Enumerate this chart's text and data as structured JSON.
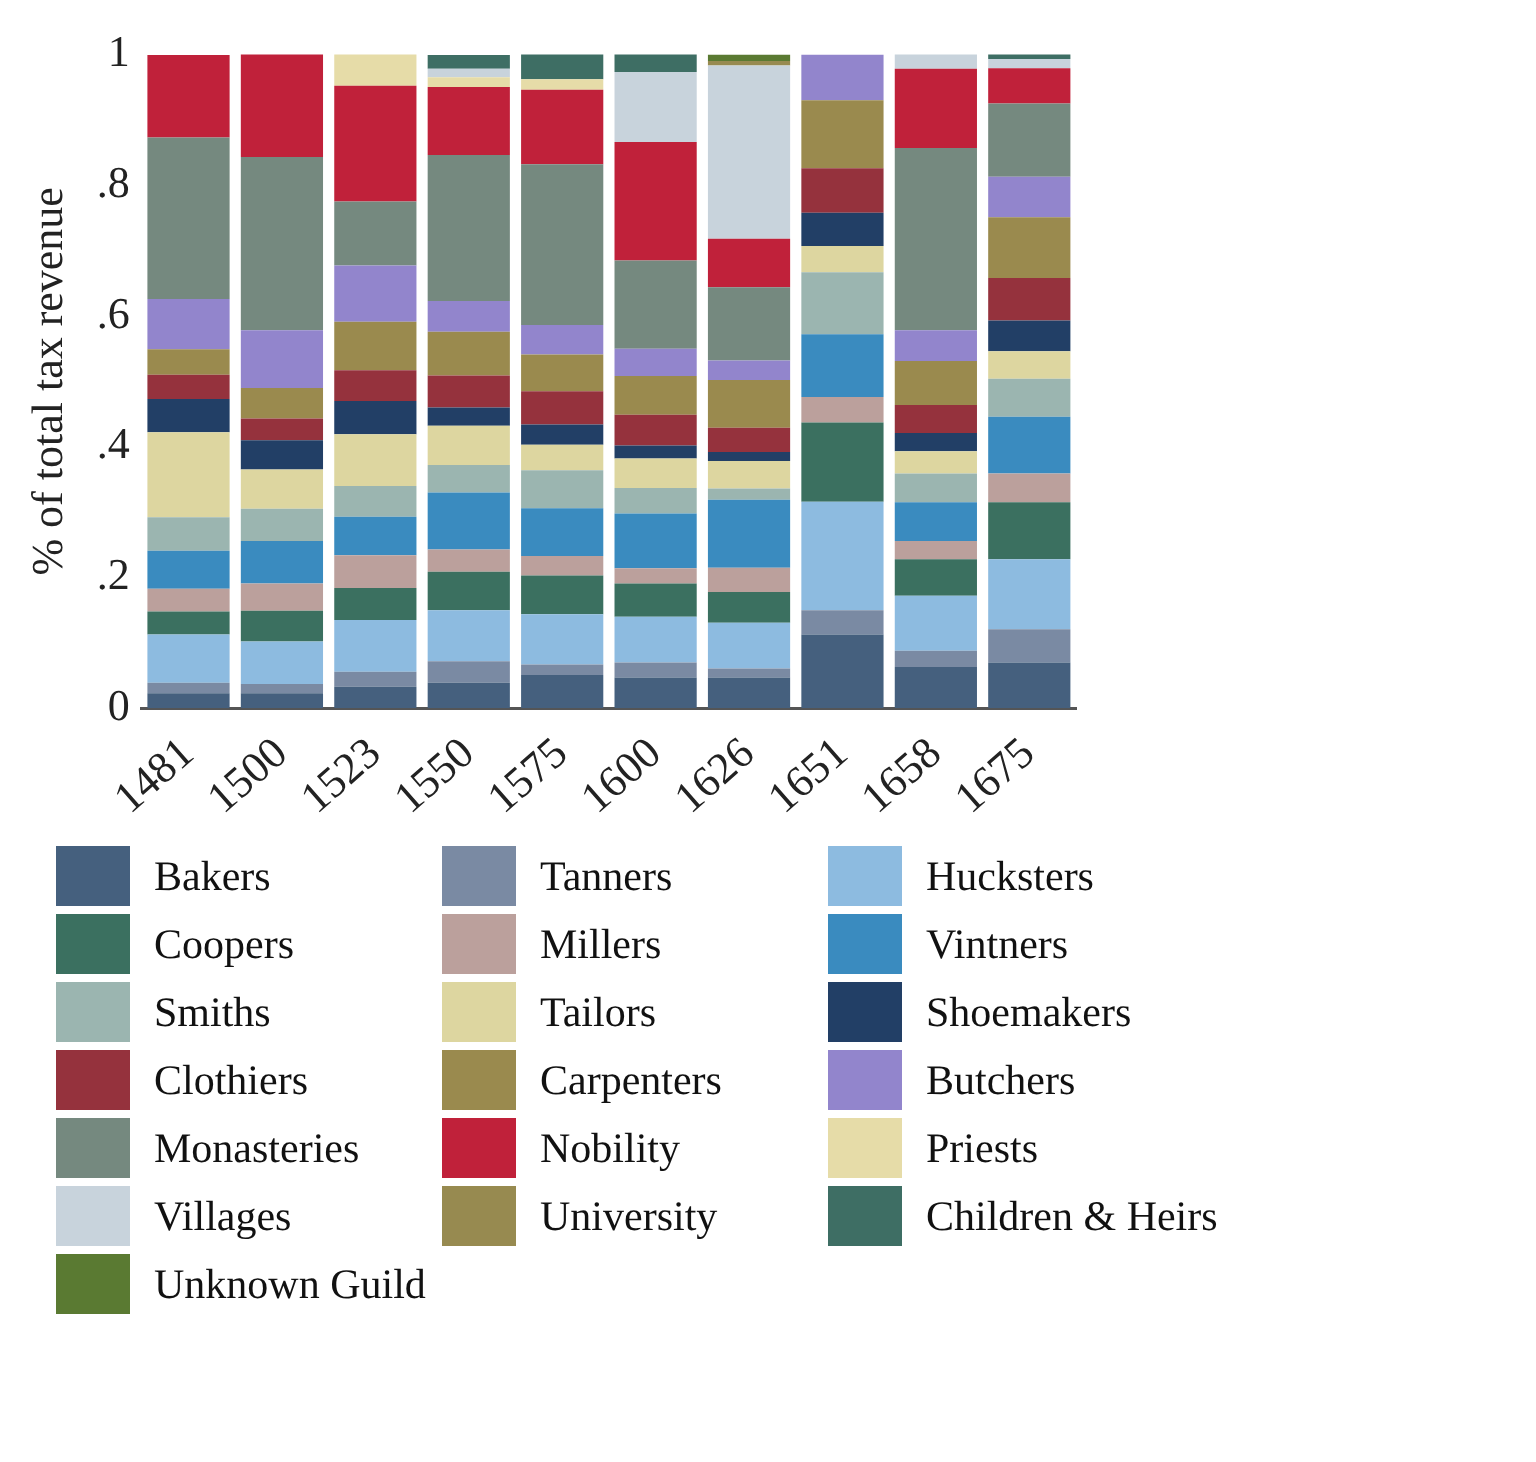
{
  "chart_data": {
    "type": "bar",
    "stacked": true,
    "ylabel": "% of total tax revenue",
    "categories": [
      "1481",
      "1500",
      "1523",
      "1550",
      "1575",
      "1600",
      "1626",
      "1651",
      "1658",
      "1675"
    ],
    "ylim": [
      0,
      1
    ],
    "yticks": [
      0,
      {
        "value": 0.2,
        "label": ".2"
      },
      {
        "value": 0.4,
        "label": ".4"
      },
      {
        "value": 0.6,
        "label": ".6"
      },
      {
        "value": 0.8,
        "label": ".8"
      },
      1
    ],
    "grid": false,
    "legend": "bottom",
    "series": [
      {
        "name": "Bakers",
        "color": "#45607e",
        "values": [
          0.023,
          0.023,
          0.033,
          0.039,
          0.051,
          0.047,
          0.047,
          0.113,
          0.063,
          0.07
        ]
      },
      {
        "name": "Tanners",
        "color": "#7a8aa3",
        "values": [
          0.016,
          0.014,
          0.023,
          0.033,
          0.016,
          0.023,
          0.014,
          0.037,
          0.025,
          0.051
        ]
      },
      {
        "name": "Hucksters",
        "color": "#8dbbe0",
        "values": [
          0.074,
          0.065,
          0.079,
          0.078,
          0.077,
          0.07,
          0.07,
          0.166,
          0.084,
          0.107
        ]
      },
      {
        "name": "Coopers",
        "color": "#3b7060",
        "values": [
          0.035,
          0.047,
          0.049,
          0.059,
          0.059,
          0.051,
          0.047,
          0.121,
          0.056,
          0.087
        ]
      },
      {
        "name": "Millers",
        "color": "#bba09c",
        "values": [
          0.035,
          0.042,
          0.05,
          0.034,
          0.03,
          0.023,
          0.037,
          0.039,
          0.028,
          0.044
        ]
      },
      {
        "name": "Vintners",
        "color": "#3a8bbf",
        "values": [
          0.058,
          0.065,
          0.059,
          0.087,
          0.073,
          0.084,
          0.104,
          0.096,
          0.059,
          0.087
        ]
      },
      {
        "name": "Smiths",
        "color": "#9bb5b0",
        "values": [
          0.051,
          0.049,
          0.047,
          0.042,
          0.058,
          0.039,
          0.017,
          0.095,
          0.044,
          0.058
        ]
      },
      {
        "name": "Tailors",
        "color": "#ddd6a0",
        "values": [
          0.13,
          0.06,
          0.079,
          0.06,
          0.039,
          0.045,
          0.042,
          0.04,
          0.034,
          0.042
        ]
      },
      {
        "name": "Shoemakers",
        "color": "#223f66",
        "values": [
          0.051,
          0.045,
          0.051,
          0.028,
          0.031,
          0.02,
          0.014,
          0.051,
          0.028,
          0.047
        ]
      },
      {
        "name": "Clothiers",
        "color": "#95323d",
        "values": [
          0.037,
          0.033,
          0.047,
          0.049,
          0.051,
          0.047,
          0.037,
          0.068,
          0.043,
          0.065
        ]
      },
      {
        "name": "Carpenters",
        "color": "#9a8a4e",
        "values": [
          0.039,
          0.047,
          0.074,
          0.067,
          0.056,
          0.059,
          0.073,
          0.104,
          0.067,
          0.093
        ]
      },
      {
        "name": "Butchers",
        "color": "#9285cc",
        "values": [
          0.077,
          0.088,
          0.086,
          0.047,
          0.045,
          0.042,
          0.03,
          0.07,
          0.047,
          0.062
        ]
      },
      {
        "name": "Monasteries",
        "color": "#75897f",
        "values": [
          0.247,
          0.265,
          0.098,
          0.223,
          0.246,
          0.135,
          0.112,
          null,
          0.279,
          0.112
        ]
      },
      {
        "name": "Nobility",
        "color": "#c0213a",
        "values": [
          0.126,
          0.158,
          0.177,
          0.104,
          0.114,
          0.181,
          0.074,
          null,
          0.121,
          0.054
        ]
      },
      {
        "name": "Priests",
        "color": "#e6dca8",
        "values": [
          null,
          null,
          0.049,
          0.015,
          0.016,
          null,
          null,
          null,
          null,
          null
        ]
      },
      {
        "name": "Villages",
        "color": "#c8d3dc",
        "values": [
          null,
          null,
          null,
          0.013,
          null,
          0.107,
          0.265,
          null,
          0.023,
          0.014
        ]
      },
      {
        "name": "University",
        "color": "#978a50",
        "values": [
          null,
          null,
          null,
          null,
          null,
          null,
          0.007,
          null,
          null,
          null
        ]
      },
      {
        "name": "Children & Heirs",
        "color": "#3e6e64",
        "values": [
          null,
          null,
          null,
          0.021,
          0.04,
          0.028,
          null,
          null,
          null,
          0.009
        ]
      },
      {
        "name": "Unknown Guild",
        "color": "#5a7a32",
        "values": [
          null,
          null,
          null,
          null,
          null,
          null,
          0.01,
          null,
          null,
          null
        ]
      }
    ]
  }
}
